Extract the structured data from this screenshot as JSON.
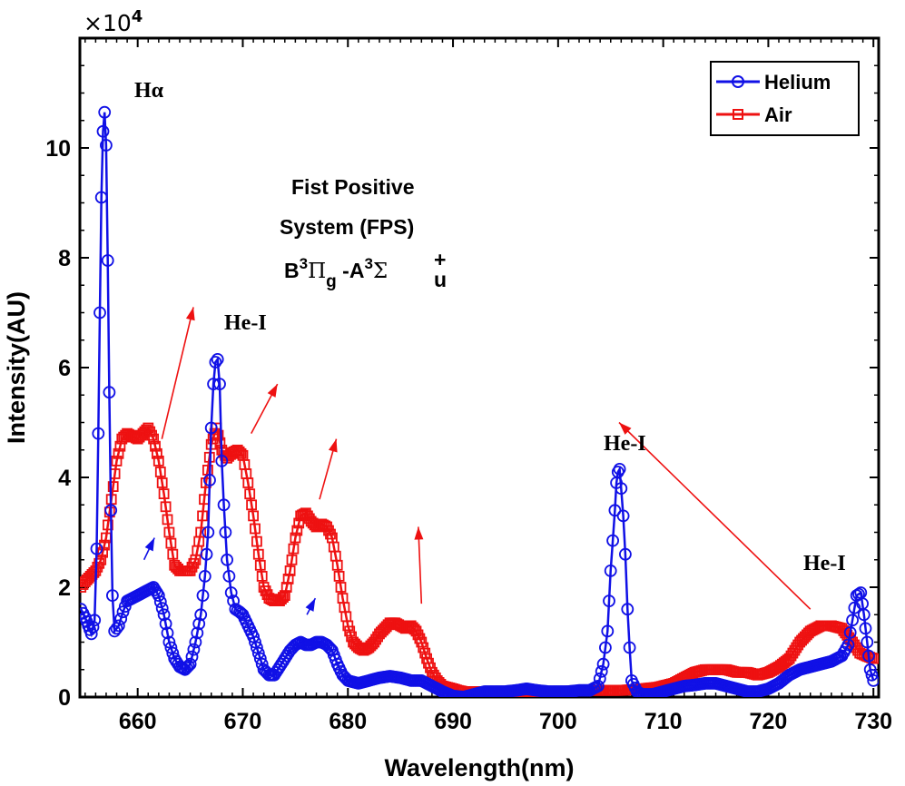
{
  "chart_data": {
    "type": "line",
    "title": "",
    "xlabel": "Wavelength(nm)",
    "ylabel": "Intensity(AU)",
    "exponent_label": "×10",
    "exponent_power": "4",
    "xlim": [
      654.5,
      730.5
    ],
    "ylim": [
      0,
      12
    ],
    "xticks": [
      660,
      670,
      680,
      690,
      700,
      710,
      720,
      730
    ],
    "xtick_labels": [
      "660",
      "670",
      "680",
      "690",
      "700",
      "710",
      "720",
      "730"
    ],
    "yticks": [
      0,
      2,
      4,
      6,
      8,
      10
    ],
    "ytick_labels": [
      "0",
      "2",
      "4",
      "6",
      "8",
      "10"
    ],
    "legend_position": "top-right",
    "series": [
      {
        "name": "Helium",
        "color": "#1010e6",
        "marker": "circle",
        "points": [
          [
            654.6,
            1.6
          ],
          [
            655.0,
            1.45
          ],
          [
            655.3,
            1.3
          ],
          [
            655.6,
            1.15
          ],
          [
            655.9,
            1.4
          ],
          [
            656.1,
            2.7
          ],
          [
            656.25,
            4.8
          ],
          [
            656.4,
            7.0
          ],
          [
            656.55,
            9.1
          ],
          [
            656.7,
            10.3
          ],
          [
            656.85,
            10.65
          ],
          [
            657.0,
            10.05
          ],
          [
            657.15,
            7.95
          ],
          [
            657.3,
            5.55
          ],
          [
            657.45,
            3.4
          ],
          [
            657.6,
            1.85
          ],
          [
            657.8,
            1.2
          ],
          [
            658.2,
            1.3
          ],
          [
            658.6,
            1.55
          ],
          [
            659.0,
            1.75
          ],
          [
            659.5,
            1.8
          ],
          [
            660.0,
            1.85
          ],
          [
            660.5,
            1.9
          ],
          [
            661.0,
            1.95
          ],
          [
            661.5,
            2.0
          ],
          [
            662.0,
            1.85
          ],
          [
            662.5,
            1.5
          ],
          [
            663.0,
            1.0
          ],
          [
            663.5,
            0.7
          ],
          [
            664.0,
            0.55
          ],
          [
            664.5,
            0.5
          ],
          [
            665.0,
            0.6
          ],
          [
            665.5,
            1.0
          ],
          [
            666.0,
            1.5
          ],
          [
            666.4,
            2.2
          ],
          [
            666.7,
            3.0
          ],
          [
            667.0,
            4.9
          ],
          [
            667.2,
            5.7
          ],
          [
            667.4,
            6.1
          ],
          [
            667.6,
            6.15
          ],
          [
            667.8,
            5.7
          ],
          [
            668.0,
            4.3
          ],
          [
            668.2,
            3.5
          ],
          [
            668.5,
            2.5
          ],
          [
            668.9,
            1.9
          ],
          [
            669.3,
            1.6
          ],
          [
            669.7,
            1.55
          ],
          [
            670.0,
            1.5
          ],
          [
            670.5,
            1.3
          ],
          [
            671.0,
            1.1
          ],
          [
            671.5,
            0.8
          ],
          [
            672.0,
            0.5
          ],
          [
            672.5,
            0.4
          ],
          [
            673.0,
            0.4
          ],
          [
            673.5,
            0.55
          ],
          [
            674.0,
            0.7
          ],
          [
            674.5,
            0.85
          ],
          [
            675.0,
            0.95
          ],
          [
            675.5,
            1.0
          ],
          [
            676.0,
            0.95
          ],
          [
            676.5,
            0.95
          ],
          [
            677.0,
            1.0
          ],
          [
            677.5,
            1.0
          ],
          [
            678.0,
            0.95
          ],
          [
            678.5,
            0.85
          ],
          [
            679.0,
            0.6
          ],
          [
            679.5,
            0.4
          ],
          [
            680.0,
            0.3
          ],
          [
            681.0,
            0.25
          ],
          [
            682.0,
            0.3
          ],
          [
            683.0,
            0.35
          ],
          [
            684.0,
            0.38
          ],
          [
            685.0,
            0.35
          ],
          [
            686.0,
            0.3
          ],
          [
            687.0,
            0.3
          ],
          [
            688.0,
            0.2
          ],
          [
            689.0,
            0.1
          ],
          [
            690.0,
            0.02
          ],
          [
            691.0,
            0.0
          ],
          [
            692.0,
            0.05
          ],
          [
            693.0,
            0.1
          ],
          [
            694.0,
            0.1
          ],
          [
            695.0,
            0.1
          ],
          [
            696.0,
            0.12
          ],
          [
            697.0,
            0.15
          ],
          [
            698.0,
            0.12
          ],
          [
            699.0,
            0.1
          ],
          [
            700.0,
            0.1
          ],
          [
            701.0,
            0.1
          ],
          [
            702.0,
            0.12
          ],
          [
            703.0,
            0.12
          ],
          [
            703.8,
            0.2
          ],
          [
            704.3,
            0.6
          ],
          [
            704.7,
            1.2
          ],
          [
            705.0,
            2.3
          ],
          [
            705.2,
            2.85
          ],
          [
            705.4,
            3.4
          ],
          [
            705.55,
            3.9
          ],
          [
            705.7,
            4.1
          ],
          [
            705.85,
            4.15
          ],
          [
            706.0,
            3.8
          ],
          [
            706.2,
            3.3
          ],
          [
            706.4,
            2.6
          ],
          [
            706.6,
            1.6
          ],
          [
            706.8,
            0.9
          ],
          [
            707.0,
            0.3
          ],
          [
            707.5,
            0.1
          ],
          [
            708.0,
            0.05
          ],
          [
            709.0,
            0.05
          ],
          [
            710.0,
            0.1
          ],
          [
            711.0,
            0.15
          ],
          [
            712.0,
            0.2
          ],
          [
            713.0,
            0.22
          ],
          [
            714.0,
            0.25
          ],
          [
            715.0,
            0.25
          ],
          [
            716.0,
            0.2
          ],
          [
            717.0,
            0.15
          ],
          [
            718.0,
            0.1
          ],
          [
            719.0,
            0.1
          ],
          [
            720.0,
            0.15
          ],
          [
            721.0,
            0.25
          ],
          [
            722.0,
            0.4
          ],
          [
            723.0,
            0.5
          ],
          [
            724.0,
            0.55
          ],
          [
            725.0,
            0.6
          ],
          [
            726.0,
            0.65
          ],
          [
            727.0,
            0.75
          ],
          [
            727.6,
            0.95
          ],
          [
            728.0,
            1.4
          ],
          [
            728.4,
            1.85
          ],
          [
            728.8,
            1.9
          ],
          [
            729.1,
            1.5
          ],
          [
            729.4,
            1.0
          ],
          [
            729.7,
            0.5
          ],
          [
            730.0,
            0.3
          ]
        ]
      },
      {
        "name": "Air",
        "color": "#ee1111",
        "marker": "square",
        "points": [
          [
            654.6,
            2.0
          ],
          [
            655.0,
            2.1
          ],
          [
            655.5,
            2.2
          ],
          [
            656.0,
            2.3
          ],
          [
            656.5,
            2.5
          ],
          [
            657.0,
            2.9
          ],
          [
            657.5,
            3.6
          ],
          [
            658.0,
            4.3
          ],
          [
            658.5,
            4.7
          ],
          [
            659.0,
            4.8
          ],
          [
            659.5,
            4.75
          ],
          [
            660.0,
            4.7
          ],
          [
            660.5,
            4.8
          ],
          [
            661.0,
            4.9
          ],
          [
            661.5,
            4.7
          ],
          [
            662.0,
            4.3
          ],
          [
            662.5,
            3.7
          ],
          [
            663.0,
            3.0
          ],
          [
            663.5,
            2.4
          ],
          [
            664.0,
            2.3
          ],
          [
            664.5,
            2.3
          ],
          [
            665.0,
            2.3
          ],
          [
            665.5,
            2.5
          ],
          [
            666.0,
            3.0
          ],
          [
            666.5,
            3.9
          ],
          [
            667.0,
            4.6
          ],
          [
            667.5,
            4.9
          ],
          [
            668.0,
            4.5
          ],
          [
            668.5,
            4.35
          ],
          [
            669.0,
            4.45
          ],
          [
            669.5,
            4.5
          ],
          [
            670.0,
            4.4
          ],
          [
            670.5,
            3.9
          ],
          [
            671.0,
            3.3
          ],
          [
            671.5,
            2.6
          ],
          [
            672.0,
            2.0
          ],
          [
            672.5,
            1.8
          ],
          [
            673.0,
            1.75
          ],
          [
            673.5,
            1.75
          ],
          [
            674.0,
            1.85
          ],
          [
            674.5,
            2.3
          ],
          [
            675.0,
            2.9
          ],
          [
            675.5,
            3.3
          ],
          [
            676.0,
            3.35
          ],
          [
            676.5,
            3.2
          ],
          [
            677.0,
            3.1
          ],
          [
            677.5,
            3.15
          ],
          [
            678.0,
            3.1
          ],
          [
            678.5,
            2.9
          ],
          [
            679.0,
            2.4
          ],
          [
            679.5,
            1.8
          ],
          [
            680.0,
            1.3
          ],
          [
            680.5,
            1.0
          ],
          [
            681.0,
            0.9
          ],
          [
            681.5,
            0.85
          ],
          [
            682.0,
            0.9
          ],
          [
            682.5,
            1.0
          ],
          [
            683.0,
            1.15
          ],
          [
            683.5,
            1.25
          ],
          [
            684.0,
            1.35
          ],
          [
            684.5,
            1.35
          ],
          [
            685.0,
            1.3
          ],
          [
            685.5,
            1.25
          ],
          [
            686.0,
            1.3
          ],
          [
            686.5,
            1.2
          ],
          [
            687.0,
            1.0
          ],
          [
            687.5,
            0.7
          ],
          [
            688.0,
            0.45
          ],
          [
            688.5,
            0.3
          ],
          [
            689.0,
            0.2
          ],
          [
            690.0,
            0.15
          ],
          [
            690.5,
            0.12
          ],
          [
            691.0,
            0.1
          ],
          [
            692.0,
            0.1
          ],
          [
            694.0,
            0.1
          ],
          [
            696.0,
            0.1
          ],
          [
            698.0,
            0.1
          ],
          [
            700.0,
            0.1
          ],
          [
            702.0,
            0.12
          ],
          [
            704.0,
            0.12
          ],
          [
            706.0,
            0.12
          ],
          [
            708.0,
            0.15
          ],
          [
            709.5,
            0.18
          ],
          [
            711.0,
            0.25
          ],
          [
            712.0,
            0.35
          ],
          [
            713.0,
            0.45
          ],
          [
            714.0,
            0.5
          ],
          [
            715.0,
            0.5
          ],
          [
            716.0,
            0.5
          ],
          [
            717.0,
            0.45
          ],
          [
            718.0,
            0.45
          ],
          [
            719.0,
            0.4
          ],
          [
            720.0,
            0.45
          ],
          [
            721.0,
            0.55
          ],
          [
            722.0,
            0.7
          ],
          [
            723.0,
            1.0
          ],
          [
            724.0,
            1.2
          ],
          [
            725.0,
            1.3
          ],
          [
            726.0,
            1.3
          ],
          [
            727.0,
            1.25
          ],
          [
            728.0,
            1.0
          ],
          [
            728.7,
            0.8
          ],
          [
            729.3,
            0.75
          ],
          [
            730.0,
            0.7
          ]
        ]
      }
    ],
    "annotations": {
      "h_alpha": "Hα",
      "he1_a": "He-I",
      "he1_b": "He-I",
      "he1_c": "He-I",
      "fps_line1": "Fist Positive",
      "fps_line2": "System (FPS)",
      "fps_B": "B",
      "fps_sup1": "3",
      "fps_Pi": "Π",
      "fps_sub_g": "g",
      "fps_dashA": " -A",
      "fps_sup2": "3",
      "fps_Sigma": "Σ",
      "fps_sup_plus": "+",
      "fps_sub_u": "u"
    },
    "arrows": [
      {
        "color": "#ee1111",
        "from": [
          662.3,
          4.7
        ],
        "to": [
          665.3,
          7.1
        ]
      },
      {
        "color": "#ee1111",
        "from": [
          670.8,
          4.8
        ],
        "to": [
          673.3,
          5.7
        ]
      },
      {
        "color": "#ee1111",
        "from": [
          677.3,
          3.6
        ],
        "to": [
          678.9,
          4.7
        ]
      },
      {
        "color": "#ee1111",
        "from": [
          687.0,
          1.7
        ],
        "to": [
          686.7,
          3.1
        ]
      },
      {
        "color": "#ee1111",
        "from": [
          724.0,
          1.6
        ],
        "to": [
          705.8,
          5.0
        ]
      },
      {
        "color": "#1010e6",
        "from": [
          660.6,
          2.5
        ],
        "to": [
          661.6,
          2.9
        ]
      },
      {
        "color": "#1010e6",
        "from": [
          676.1,
          1.5
        ],
        "to": [
          676.9,
          1.8
        ]
      }
    ]
  }
}
